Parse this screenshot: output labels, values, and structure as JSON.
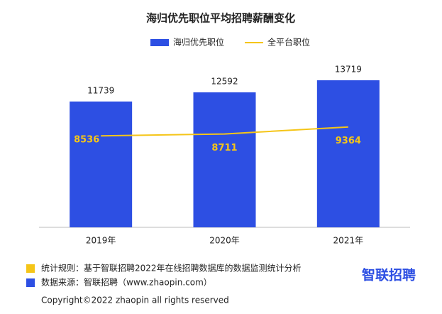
{
  "chart_data": {
    "type": "bar-line",
    "title": "海归优先职位平均招聘薪酬变化",
    "categories": [
      "2019年",
      "2020年",
      "2021年"
    ],
    "series": [
      {
        "name": "海归优先职位",
        "type": "bar",
        "color": "#2d4fe3",
        "values": [
          11739,
          12592,
          13719
        ]
      },
      {
        "name": "全平台职位",
        "type": "line",
        "color": "#f5c518",
        "values": [
          8536,
          8711,
          9364
        ]
      }
    ]
  },
  "notes": [
    "统计规则：基于智联招聘2022年在线招聘数据库的数据监测统计分析",
    "数据来源：智联招聘（www.zhaopin.com）"
  ],
  "logo": "智联招聘",
  "copyright": "Copyright©2022 zhaopin all rights reserved"
}
